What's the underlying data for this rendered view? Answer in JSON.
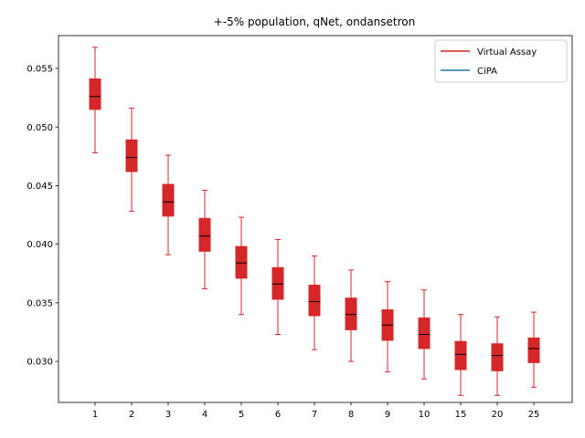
{
  "chart_data": {
    "type": "boxplot",
    "title": "+-5% population, qNet, ondansetron",
    "xlabel": "",
    "ylabel": "",
    "categories": [
      "1",
      "2",
      "3",
      "4",
      "5",
      "6",
      "7",
      "8",
      "9",
      "10",
      "15",
      "20",
      "25"
    ],
    "ylim": [
      0.0265,
      0.0578
    ],
    "yticks": [
      "0.030",
      "0.035",
      "0.040",
      "0.045",
      "0.050",
      "0.055"
    ],
    "ytick_values": [
      0.03,
      0.035,
      0.04,
      0.045,
      0.05,
      0.055
    ],
    "grid": false,
    "legend_position": "top-right",
    "series": [
      {
        "name": "Virtual Assay",
        "color": "#d62728",
        "boxes": [
          {
            "whislo": 0.0478,
            "q1": 0.0515,
            "med": 0.0526,
            "q3": 0.0541,
            "whishi": 0.0568
          },
          {
            "whislo": 0.0428,
            "q1": 0.0462,
            "med": 0.0474,
            "q3": 0.0489,
            "whishi": 0.0516
          },
          {
            "whislo": 0.0391,
            "q1": 0.0424,
            "med": 0.0436,
            "q3": 0.0451,
            "whishi": 0.0476
          },
          {
            "whislo": 0.0362,
            "q1": 0.0394,
            "med": 0.0407,
            "q3": 0.0422,
            "whishi": 0.0446
          },
          {
            "whislo": 0.034,
            "q1": 0.0371,
            "med": 0.0384,
            "q3": 0.0398,
            "whishi": 0.0423
          },
          {
            "whislo": 0.0323,
            "q1": 0.0353,
            "med": 0.0366,
            "q3": 0.038,
            "whishi": 0.0404
          },
          {
            "whislo": 0.031,
            "q1": 0.0339,
            "med": 0.0351,
            "q3": 0.0365,
            "whishi": 0.039
          },
          {
            "whislo": 0.03,
            "q1": 0.0327,
            "med": 0.034,
            "q3": 0.0354,
            "whishi": 0.0378
          },
          {
            "whislo": 0.0291,
            "q1": 0.0318,
            "med": 0.0331,
            "q3": 0.0344,
            "whishi": 0.0368
          },
          {
            "whislo": 0.0285,
            "q1": 0.0311,
            "med": 0.0323,
            "q3": 0.0337,
            "whishi": 0.0361
          },
          {
            "whislo": 0.0271,
            "q1": 0.0293,
            "med": 0.0306,
            "q3": 0.0317,
            "whishi": 0.034
          },
          {
            "whislo": 0.0271,
            "q1": 0.0292,
            "med": 0.0305,
            "q3": 0.0315,
            "whishi": 0.0338
          },
          {
            "whislo": 0.0278,
            "q1": 0.0299,
            "med": 0.0311,
            "q3": 0.032,
            "whishi": 0.0342
          }
        ]
      },
      {
        "name": "CiPA",
        "color": "#1f77b4",
        "boxes": []
      }
    ],
    "median_color": "#000000"
  }
}
